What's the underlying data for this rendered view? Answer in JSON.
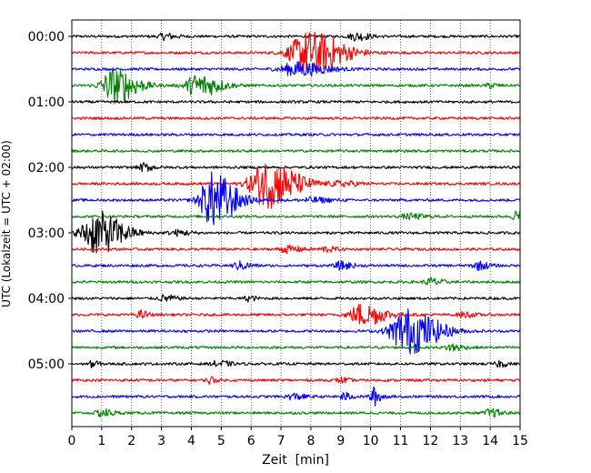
{
  "chart_data": {
    "type": "line",
    "subtype": "helicorder",
    "title": "",
    "xlabel": "Zeit  [min]",
    "ylabel": "UTC (Lokalzeit = UTC + 02:00)",
    "xlim": [
      0,
      15
    ],
    "x_ticks": [
      0,
      1,
      2,
      3,
      4,
      5,
      6,
      7,
      8,
      9,
      10,
      11,
      12,
      13,
      14,
      15
    ],
    "x_tick_labels": [
      "0",
      "1",
      "2",
      "3",
      "4",
      "5",
      "6",
      "7",
      "8",
      "9",
      "10",
      "11",
      "12",
      "13",
      "14",
      "15"
    ],
    "y_tick_labels": [
      "00:00",
      "01:00",
      "02:00",
      "03:00",
      "04:00",
      "05:00"
    ],
    "trace_minutes": 15,
    "traces_per_hour": 4,
    "trace_count": 24,
    "grid": "vertical dotted every 1 min",
    "colors": [
      "#000000",
      "#ff0000",
      "#0000ff",
      "#008000"
    ],
    "events": [
      {
        "trace": 0,
        "t": 3.1,
        "amp": 0.25,
        "dur": 0.3
      },
      {
        "trace": 0,
        "t": 9.5,
        "amp": 0.3,
        "dur": 0.35
      },
      {
        "trace": 1,
        "t": 7.9,
        "amp": 1.7,
        "dur": 0.9
      },
      {
        "trace": 2,
        "t": 7.5,
        "amp": 0.55,
        "dur": 0.8
      },
      {
        "trace": 3,
        "t": 1.4,
        "amp": 1.4,
        "dur": 0.6
      },
      {
        "trace": 3,
        "t": 4.2,
        "amp": 0.9,
        "dur": 0.6
      },
      {
        "trace": 3,
        "t": 14.0,
        "amp": 0.2,
        "dur": 0.2
      },
      {
        "trace": 8,
        "t": 2.4,
        "amp": 0.3,
        "dur": 0.25
      },
      {
        "trace": 9,
        "t": 6.5,
        "amp": 1.9,
        "dur": 0.8
      },
      {
        "trace": 9,
        "t": 9.0,
        "amp": 0.2,
        "dur": 0.5
      },
      {
        "trace": 10,
        "t": 4.7,
        "amp": 2.2,
        "dur": 0.6
      },
      {
        "trace": 10,
        "t": 8.0,
        "amp": 0.2,
        "dur": 0.5
      },
      {
        "trace": 11,
        "t": 11.3,
        "amp": 0.2,
        "dur": 0.4
      },
      {
        "trace": 11,
        "t": 14.9,
        "amp": 0.5,
        "dur": 0.2
      },
      {
        "trace": 12,
        "t": 0.8,
        "amp": 1.7,
        "dur": 0.7
      },
      {
        "trace": 12,
        "t": 3.5,
        "amp": 0.2,
        "dur": 0.4
      },
      {
        "trace": 13,
        "t": 7.2,
        "amp": 0.25,
        "dur": 0.4
      },
      {
        "trace": 13,
        "t": 8.5,
        "amp": 0.2,
        "dur": 0.3
      },
      {
        "trace": 14,
        "t": 5.6,
        "amp": 0.3,
        "dur": 0.3
      },
      {
        "trace": 14,
        "t": 9.0,
        "amp": 0.3,
        "dur": 0.3
      },
      {
        "trace": 14,
        "t": 13.6,
        "amp": 0.3,
        "dur": 0.3
      },
      {
        "trace": 15,
        "t": 12.0,
        "amp": 0.3,
        "dur": 0.3
      },
      {
        "trace": 16,
        "t": 3.1,
        "amp": 0.25,
        "dur": 0.3
      },
      {
        "trace": 16,
        "t": 5.9,
        "amp": 0.2,
        "dur": 0.2
      },
      {
        "trace": 17,
        "t": 9.7,
        "amp": 0.9,
        "dur": 0.6
      },
      {
        "trace": 17,
        "t": 2.3,
        "amp": 0.3,
        "dur": 0.2
      },
      {
        "trace": 17,
        "t": 13.1,
        "amp": 0.2,
        "dur": 0.3
      },
      {
        "trace": 18,
        "t": 11.2,
        "amp": 1.8,
        "dur": 0.8
      },
      {
        "trace": 19,
        "t": 12.7,
        "amp": 0.3,
        "dur": 0.3
      },
      {
        "trace": 20,
        "t": 0.7,
        "amp": 0.3,
        "dur": 0.15
      },
      {
        "trace": 20,
        "t": 4.9,
        "amp": 0.25,
        "dur": 0.3
      },
      {
        "trace": 20,
        "t": 14.3,
        "amp": 0.25,
        "dur": 0.2
      },
      {
        "trace": 21,
        "t": 4.6,
        "amp": 0.3,
        "dur": 0.15
      },
      {
        "trace": 21,
        "t": 9.0,
        "amp": 0.2,
        "dur": 0.2
      },
      {
        "trace": 22,
        "t": 7.4,
        "amp": 0.25,
        "dur": 0.3
      },
      {
        "trace": 22,
        "t": 9.1,
        "amp": 0.3,
        "dur": 0.2
      },
      {
        "trace": 22,
        "t": 10.1,
        "amp": 0.7,
        "dur": 0.2
      },
      {
        "trace": 23,
        "t": 1.0,
        "amp": 0.3,
        "dur": 0.3
      },
      {
        "trace": 23,
        "t": 14.0,
        "amp": 0.3,
        "dur": 0.3
      }
    ]
  }
}
